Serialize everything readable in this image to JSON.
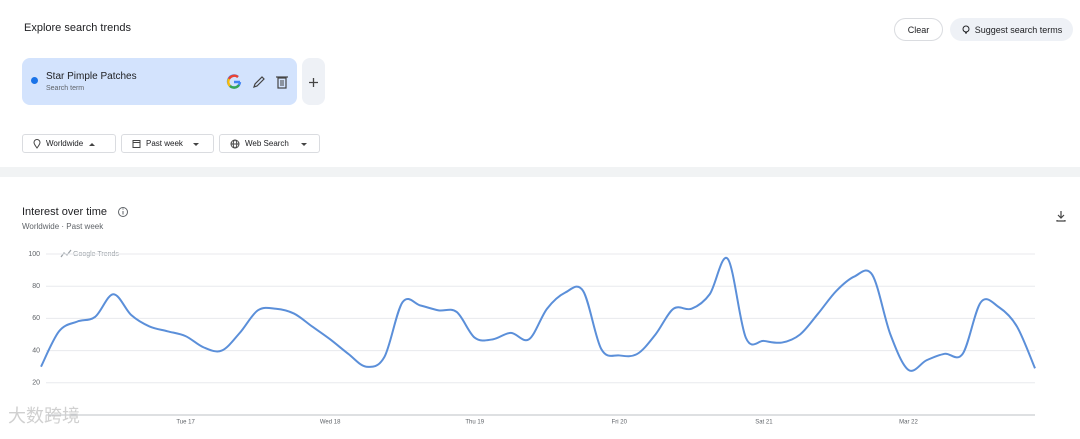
{
  "header": {
    "title": "Explore search trends",
    "clear": "Clear",
    "suggest": "Suggest search terms"
  },
  "search_term": {
    "name": "Star Pimple Patches",
    "subtitle": "Search term"
  },
  "filters": [
    "Worldwide",
    "Past week",
    "Web Search"
  ],
  "overlay": "大数跨境",
  "chart_data": {
    "type": "line",
    "title": "Interest over time",
    "subtitle": "Worldwide · Past week",
    "watermark": "Google Trends",
    "categories": [
      null,
      null,
      null,
      null,
      null,
      null,
      null,
      null,
      "Tue 17",
      null,
      null,
      null,
      null,
      null,
      null,
      null,
      "Wed 18",
      null,
      null,
      null,
      null,
      null,
      null,
      null,
      "Thu 19",
      null,
      null,
      null,
      null,
      null,
      null,
      null,
      "Fri 20",
      null,
      null,
      null,
      null,
      null,
      null,
      null,
      "Sat 21",
      null,
      null,
      null,
      null,
      null,
      null,
      null,
      "Mar 22",
      null,
      null,
      null,
      null,
      null,
      null,
      null
    ],
    "values": [
      30,
      52,
      58,
      61,
      75,
      62,
      55,
      52,
      49,
      42,
      40,
      51,
      65,
      66,
      63,
      55,
      47,
      38,
      30,
      36,
      70,
      68,
      65,
      64,
      48,
      47,
      51,
      47,
      66,
      76,
      77,
      41,
      37,
      38,
      50,
      66,
      66,
      75,
      97,
      48,
      46,
      45,
      50,
      63,
      77,
      86,
      87,
      50,
      28,
      34,
      38,
      38,
      70,
      67,
      55,
      29
    ],
    "color": "#5b8fd9",
    "ylim": [
      0,
      100
    ],
    "yticks": [
      20,
      40,
      60,
      80,
      100
    ],
    "grid": true
  }
}
